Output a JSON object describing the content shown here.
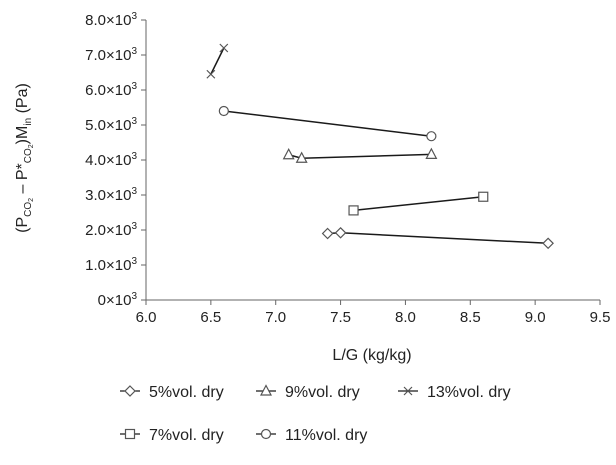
{
  "chart_data": {
    "type": "scatter",
    "xlabel": "L/G (kg/kg)",
    "ylabel": {
      "open": "(P",
      "sub1": "CO",
      "sub1b": "2",
      "dash": " – P*",
      "sub2": "CO",
      "sub2b": "2",
      "close": ")M",
      "sub3": "in",
      "unit": " (Pa)"
    },
    "xlim": [
      6.0,
      9.5
    ],
    "ylim": [
      0,
      8000
    ],
    "x_ticks": [
      {
        "value": 6.0,
        "label": "6.0"
      },
      {
        "value": 6.5,
        "label": "6.5"
      },
      {
        "value": 7.0,
        "label": "7.0"
      },
      {
        "value": 7.5,
        "label": "7.5"
      },
      {
        "value": 8.0,
        "label": "8.0"
      },
      {
        "value": 8.5,
        "label": "8.5"
      },
      {
        "value": 9.0,
        "label": "9.0"
      },
      {
        "value": 9.5,
        "label": "9.5"
      }
    ],
    "y_ticks": [
      {
        "value": 0,
        "mant": "0×10",
        "exp": "3"
      },
      {
        "value": 1000,
        "mant": "1.0×10",
        "exp": "3"
      },
      {
        "value": 2000,
        "mant": "2.0×10",
        "exp": "3"
      },
      {
        "value": 3000,
        "mant": "3.0×10",
        "exp": "3"
      },
      {
        "value": 4000,
        "mant": "4.0×10",
        "exp": "3"
      },
      {
        "value": 5000,
        "mant": "5.0×10",
        "exp": "3"
      },
      {
        "value": 6000,
        "mant": "6.0×10",
        "exp": "3"
      },
      {
        "value": 7000,
        "mant": "7.0×10",
        "exp": "3"
      },
      {
        "value": 8000,
        "mant": "8.0×10",
        "exp": "3"
      }
    ],
    "grid": false,
    "legend_position": "bottom",
    "series": [
      {
        "name": "5%vol. dry",
        "marker": "diamond",
        "x": [
          7.4,
          7.5,
          9.1
        ],
        "y": [
          1900,
          1920,
          1620
        ]
      },
      {
        "name": "9%vol. dry",
        "marker": "triangle",
        "x": [
          7.1,
          7.2,
          8.2
        ],
        "y": [
          4150,
          4050,
          4160
        ]
      },
      {
        "name": "13%vol. dry",
        "marker": "x",
        "x": [
          6.5,
          6.6
        ],
        "y": [
          6450,
          7200
        ]
      },
      {
        "name": "7%vol. dry",
        "marker": "square",
        "x": [
          7.6,
          8.6
        ],
        "y": [
          2560,
          2950
        ]
      },
      {
        "name": "11%vol. dry",
        "marker": "circle",
        "x": [
          6.6,
          8.2
        ],
        "y": [
          5400,
          4680
        ]
      }
    ],
    "colors": {
      "line": "#1a1a1a",
      "marker_stroke": "#555555",
      "marker_fill": "#ffffff",
      "axis": "#666666"
    }
  }
}
